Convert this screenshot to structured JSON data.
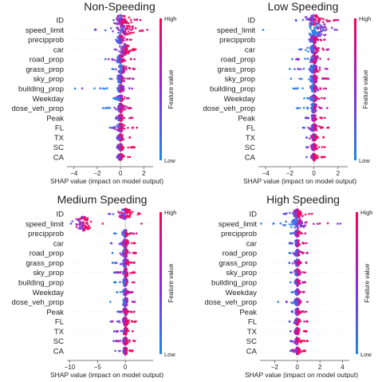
{
  "chart_data": [
    {
      "type": "beeswarm",
      "title": "Non-Speeding",
      "xlabel": "SHAP value (impact on model output)",
      "xlim": [
        -4.6,
        2.8
      ],
      "xticks": [
        -4,
        -2,
        0,
        2
      ],
      "features": [
        "ID",
        "speed_limit",
        "precipprob",
        "car",
        "road_prop",
        "grass_prop",
        "sky_prop",
        "building_prop",
        "Weekday",
        "dose_veh_prop",
        "Peak",
        "FL",
        "TX",
        "SC",
        "CA"
      ],
      "colorbar": {
        "label": "Feature value",
        "high": "High",
        "low": "Low"
      },
      "rows": [
        {
          "min": -0.6,
          "max": 1.7,
          "center": 0.1,
          "spread": 0.9,
          "peak": 0.55,
          "hot": 0.7
        },
        {
          "min": -2.2,
          "max": 2.3,
          "center": 0.4,
          "spread": 1.1,
          "peak": 0.55,
          "hot": 0.7
        },
        {
          "min": -0.4,
          "max": 0.9,
          "center": 0.0,
          "spread": 0.4,
          "peak": 0.45,
          "hot": 0.6
        },
        {
          "min": -0.5,
          "max": 1.3,
          "center": 0.4,
          "spread": 0.5,
          "peak": 0.6,
          "hot": 0.8
        },
        {
          "min": -1.3,
          "max": 1.2,
          "center": 0.0,
          "spread": 0.5,
          "peak": 0.45,
          "hot": 0.6
        },
        {
          "min": -0.7,
          "max": 1.2,
          "center": 0.1,
          "spread": 0.5,
          "peak": 0.45,
          "hot": 0.5
        },
        {
          "min": -0.9,
          "max": 1.1,
          "center": 0.0,
          "spread": 0.4,
          "peak": 0.45,
          "hot": 0.4
        },
        {
          "min": -3.9,
          "max": 1.0,
          "center": 0.0,
          "spread": 0.4,
          "peak": 0.4,
          "hot": 0.4
        },
        {
          "min": -0.6,
          "max": 0.7,
          "center": 0.0,
          "spread": 0.3,
          "peak": 0.35,
          "hot": 0.5
        },
        {
          "min": -1.5,
          "max": 0.9,
          "center": 0.0,
          "spread": 0.4,
          "peak": 0.5,
          "hot": 0.6
        },
        {
          "min": -0.4,
          "max": 1.0,
          "center": 0.0,
          "spread": 0.3,
          "peak": 0.35,
          "hot": 0.7
        },
        {
          "min": -0.9,
          "max": 1.4,
          "center": 0.0,
          "spread": 0.4,
          "peak": 0.45,
          "hot": 0.7
        },
        {
          "min": -0.3,
          "max": 0.8,
          "center": 0.0,
          "spread": 0.3,
          "peak": 0.35,
          "hot": 0.8
        },
        {
          "min": -0.3,
          "max": 1.2,
          "center": 0.0,
          "spread": 0.3,
          "peak": 0.35,
          "hot": 0.8
        },
        {
          "min": -0.3,
          "max": 0.8,
          "center": 0.0,
          "spread": 0.3,
          "peak": 0.35,
          "hot": 0.8
        }
      ]
    },
    {
      "type": "beeswarm",
      "title": "Low Speeding",
      "xlabel": "SHAP value (impact on model output)",
      "xlim": [
        -4.6,
        2.8
      ],
      "xticks": [
        -4,
        -2,
        0,
        2
      ],
      "features": [
        "ID",
        "speed_limit",
        "precipprob",
        "car",
        "road_prop",
        "grass_prop",
        "sky_prop",
        "building_prop",
        "Weekday",
        "dose_veh_prop",
        "Peak",
        "FL",
        "TX",
        "SC",
        "CA"
      ],
      "colorbar": {
        "label": "Feature value",
        "high": "High",
        "low": "Low"
      },
      "rows": [
        {
          "min": -1.5,
          "max": 2.0,
          "center": 0.0,
          "spread": 1.0,
          "peak": 0.55,
          "hot": 0.7
        },
        {
          "min": -4.2,
          "max": 1.9,
          "center": 0.3,
          "spread": 1.3,
          "peak": 0.75,
          "hot": 0.2
        },
        {
          "min": -0.4,
          "max": 0.9,
          "center": 0.0,
          "spread": 0.4,
          "peak": 0.45,
          "hot": 0.6
        },
        {
          "min": -1.2,
          "max": 1.2,
          "center": 0.0,
          "spread": 0.5,
          "peak": 0.45,
          "hot": 0.5
        },
        {
          "min": -1.8,
          "max": 1.2,
          "center": 0.0,
          "spread": 0.5,
          "peak": 0.45,
          "hot": 0.6
        },
        {
          "min": -2.0,
          "max": 1.1,
          "center": 0.0,
          "spread": 0.5,
          "peak": 0.45,
          "hot": 0.5
        },
        {
          "min": -1.9,
          "max": 1.2,
          "center": 0.0,
          "spread": 0.5,
          "peak": 0.45,
          "hot": 0.5
        },
        {
          "min": -1.7,
          "max": 1.0,
          "center": 0.0,
          "spread": 0.4,
          "peak": 0.4,
          "hot": 0.4
        },
        {
          "min": -0.8,
          "max": 0.9,
          "center": 0.0,
          "spread": 0.3,
          "peak": 0.35,
          "hot": 0.5
        },
        {
          "min": -1.4,
          "max": 1.1,
          "center": 0.0,
          "spread": 0.4,
          "peak": 0.5,
          "hot": 0.4
        },
        {
          "min": -0.7,
          "max": 0.9,
          "center": 0.0,
          "spread": 0.3,
          "peak": 0.35,
          "hot": 0.7
        },
        {
          "min": -0.9,
          "max": 1.2,
          "center": 0.0,
          "spread": 0.4,
          "peak": 0.4,
          "hot": 0.7
        },
        {
          "min": -0.6,
          "max": 0.8,
          "center": 0.0,
          "spread": 0.3,
          "peak": 0.35,
          "hot": 0.8
        },
        {
          "min": -0.6,
          "max": 0.9,
          "center": 0.0,
          "spread": 0.3,
          "peak": 0.35,
          "hot": 0.8
        },
        {
          "min": -0.6,
          "max": 0.9,
          "center": 0.0,
          "spread": 0.3,
          "peak": 0.35,
          "hot": 0.8
        }
      ]
    },
    {
      "type": "beeswarm",
      "title": "Medium Speeding",
      "xlabel": "SHAP value (impact on model output)",
      "xlim": [
        -10.5,
        5.0
      ],
      "xticks": [
        -10,
        -5,
        0
      ],
      "features": [
        "ID",
        "speed_limit",
        "precipprob",
        "car",
        "road_prop",
        "grass_prop",
        "sky_prop",
        "building_prop",
        "Weekday",
        "dose_veh_prop",
        "Peak",
        "FL",
        "TX",
        "SC",
        "CA"
      ],
      "colorbar": {
        "label": "Feature value",
        "high": "High",
        "low": "Low"
      },
      "rows": [
        {
          "min": -3.0,
          "max": 2.6,
          "center": 0.0,
          "spread": 1.6,
          "peak": 0.55,
          "hot": 0.8
        },
        {
          "min": -9.8,
          "max": 2.9,
          "center": -7.5,
          "spread": 1.8,
          "peak": 0.75,
          "hot": 0.85
        },
        {
          "min": -2.0,
          "max": 2.0,
          "center": 0.0,
          "spread": 0.6,
          "peak": 0.4,
          "hot": 0.6
        },
        {
          "min": -2.6,
          "max": 1.7,
          "center": 0.0,
          "spread": 0.7,
          "peak": 0.45,
          "hot": 0.8
        },
        {
          "min": -2.3,
          "max": 1.9,
          "center": 0.0,
          "spread": 0.7,
          "peak": 0.45,
          "hot": 0.6
        },
        {
          "min": -2.3,
          "max": 1.6,
          "center": 0.0,
          "spread": 0.7,
          "peak": 0.45,
          "hot": 0.6
        },
        {
          "min": -2.0,
          "max": 1.7,
          "center": 0.0,
          "spread": 0.6,
          "peak": 0.5,
          "hot": 0.7
        },
        {
          "min": -2.0,
          "max": 1.6,
          "center": 0.0,
          "spread": 0.6,
          "peak": 0.45,
          "hot": 0.5
        },
        {
          "min": -1.5,
          "max": 1.3,
          "center": 0.0,
          "spread": 0.5,
          "peak": 0.35,
          "hot": 0.5
        },
        {
          "min": -2.7,
          "max": 1.7,
          "center": 0.0,
          "spread": 0.7,
          "peak": 0.45,
          "hot": 0.4
        },
        {
          "min": -1.4,
          "max": 1.6,
          "center": 0.0,
          "spread": 0.5,
          "peak": 0.4,
          "hot": 0.7
        },
        {
          "min": -2.6,
          "max": 1.9,
          "center": 0.0,
          "spread": 0.7,
          "peak": 0.45,
          "hot": 0.8
        },
        {
          "min": -2.0,
          "max": 1.3,
          "center": 0.0,
          "spread": 0.5,
          "peak": 0.4,
          "hot": 0.8
        },
        {
          "min": -2.1,
          "max": 1.7,
          "center": 0.0,
          "spread": 0.6,
          "peak": 0.4,
          "hot": 0.8
        },
        {
          "min": -1.8,
          "max": 1.3,
          "center": 0.0,
          "spread": 0.5,
          "peak": 0.4,
          "hot": 0.8
        }
      ]
    },
    {
      "type": "beeswarm",
      "title": "High Speeding",
      "xlabel": "SHAP value (impact on model output)",
      "xlim": [
        -3.3,
        4.6
      ],
      "xticks": [
        -2,
        0,
        2,
        4
      ],
      "features": [
        "ID",
        "speed_limit",
        "precipprob",
        "car",
        "road_prop",
        "grass_prop",
        "sky_prop",
        "building_prop",
        "Weekday",
        "dose_veh_prop",
        "Peak",
        "FL",
        "TX",
        "SC",
        "CA"
      ],
      "colorbar": {
        "label": "Feature value",
        "high": "High",
        "low": "Low"
      },
      "rows": [
        {
          "min": -1.2,
          "max": 1.3,
          "center": 0.0,
          "spread": 0.6,
          "peak": 0.45,
          "hot": 0.7
        },
        {
          "min": -3.2,
          "max": 3.8,
          "center": 0.0,
          "spread": 1.0,
          "peak": 0.55,
          "hot": 0.3
        },
        {
          "min": -0.6,
          "max": 0.7,
          "center": 0.0,
          "spread": 0.3,
          "peak": 0.35,
          "hot": 0.6
        },
        {
          "min": -0.7,
          "max": 0.8,
          "center": 0.0,
          "spread": 0.3,
          "peak": 0.35,
          "hot": 0.6
        },
        {
          "min": -0.7,
          "max": 0.9,
          "center": 0.0,
          "spread": 0.3,
          "peak": 0.35,
          "hot": 0.6
        },
        {
          "min": -0.7,
          "max": 0.8,
          "center": 0.0,
          "spread": 0.3,
          "peak": 0.35,
          "hot": 0.6
        },
        {
          "min": -0.6,
          "max": 0.7,
          "center": 0.0,
          "spread": 0.3,
          "peak": 0.35,
          "hot": 0.6
        },
        {
          "min": -0.6,
          "max": 0.7,
          "center": 0.0,
          "spread": 0.3,
          "peak": 0.35,
          "hot": 0.5
        },
        {
          "min": -0.5,
          "max": 0.6,
          "center": 0.0,
          "spread": 0.2,
          "peak": 0.3,
          "hot": 0.5
        },
        {
          "min": -1.7,
          "max": 0.9,
          "center": 0.0,
          "spread": 0.4,
          "peak": 0.35,
          "hot": 0.5
        },
        {
          "min": -0.5,
          "max": 0.8,
          "center": 0.0,
          "spread": 0.3,
          "peak": 0.35,
          "hot": 0.7
        },
        {
          "min": -0.7,
          "max": 0.9,
          "center": 0.0,
          "spread": 0.3,
          "peak": 0.35,
          "hot": 0.7
        },
        {
          "min": -0.6,
          "max": 0.8,
          "center": 0.0,
          "spread": 0.3,
          "peak": 0.35,
          "hot": 0.8
        },
        {
          "min": -0.6,
          "max": 0.9,
          "center": 0.0,
          "spread": 0.3,
          "peak": 0.35,
          "hot": 0.8
        },
        {
          "min": -0.6,
          "max": 0.7,
          "center": 0.0,
          "spread": 0.3,
          "peak": 0.35,
          "hot": 0.8
        }
      ]
    }
  ],
  "colors": {
    "low": "#1e88e5",
    "high": "#ff0052",
    "mid": "#8a2bd8",
    "grid_axis": "#999999",
    "zero_line": "#bbbbbb"
  }
}
